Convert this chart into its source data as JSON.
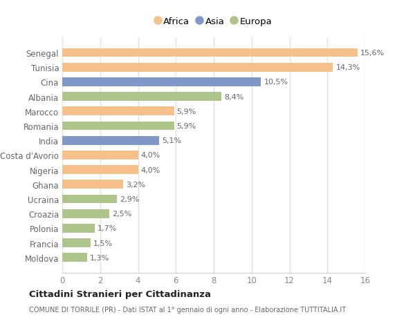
{
  "countries": [
    "Senegal",
    "Tunisia",
    "Cina",
    "Albania",
    "Marocco",
    "Romania",
    "India",
    "Costa d'Avorio",
    "Nigeria",
    "Ghana",
    "Ucraina",
    "Croazia",
    "Polonia",
    "Francia",
    "Moldova"
  ],
  "values": [
    15.6,
    14.3,
    10.5,
    8.4,
    5.9,
    5.9,
    5.1,
    4.0,
    4.0,
    3.2,
    2.9,
    2.5,
    1.7,
    1.5,
    1.3
  ],
  "labels": [
    "15,6%",
    "14,3%",
    "10,5%",
    "8,4%",
    "5,9%",
    "5,9%",
    "5,1%",
    "4,0%",
    "4,0%",
    "3,2%",
    "2,9%",
    "2,5%",
    "1,7%",
    "1,5%",
    "1,3%"
  ],
  "colors": [
    "#f5c08a",
    "#f5c08a",
    "#8098c8",
    "#adc48a",
    "#f5c08a",
    "#adc48a",
    "#8098c8",
    "#f5c08a",
    "#f5c08a",
    "#f5c08a",
    "#adc48a",
    "#adc48a",
    "#adc48a",
    "#adc48a",
    "#adc48a"
  ],
  "legend_labels": [
    "Africa",
    "Asia",
    "Europa"
  ],
  "legend_colors": [
    "#f5c08a",
    "#8098c8",
    "#adc48a"
  ],
  "title": "Cittadini Stranieri per Cittadinanza",
  "subtitle": "COMUNE DI TORRILE (PR) - Dati ISTAT al 1° gennaio di ogni anno - Elaborazione TUTTITALIA.IT",
  "xlim": [
    0,
    16
  ],
  "xticks": [
    0,
    2,
    4,
    6,
    8,
    10,
    12,
    14,
    16
  ],
  "background_color": "#ffffff",
  "grid_color": "#e0e0e0",
  "bar_height": 0.6
}
